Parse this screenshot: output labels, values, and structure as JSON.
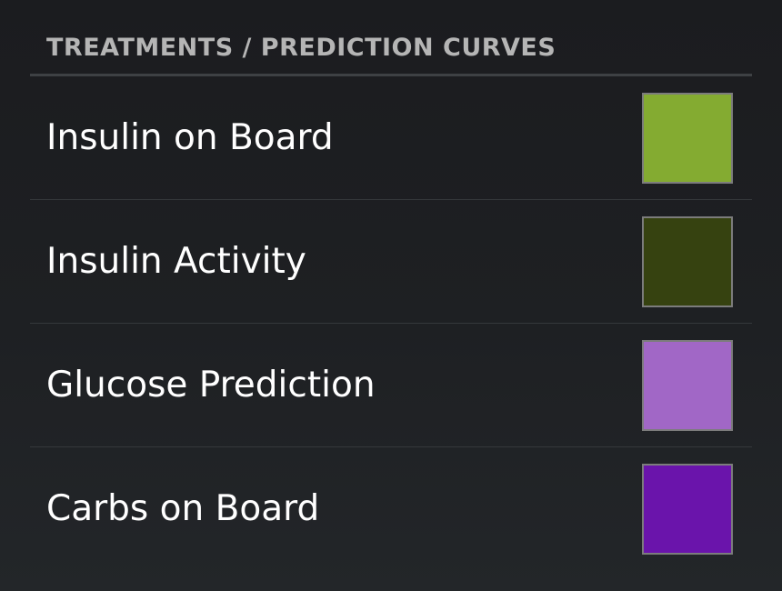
{
  "section": {
    "title": "TREATMENTS / PREDICTION CURVES"
  },
  "items": [
    {
      "label": "Insulin on Board",
      "color": "#84ab31"
    },
    {
      "label": "Insulin Activity",
      "color": "#364210"
    },
    {
      "label": "Glucose Prediction",
      "color": "#a167c6"
    },
    {
      "label": "Carbs on Board",
      "color": "#6a14ab"
    }
  ]
}
